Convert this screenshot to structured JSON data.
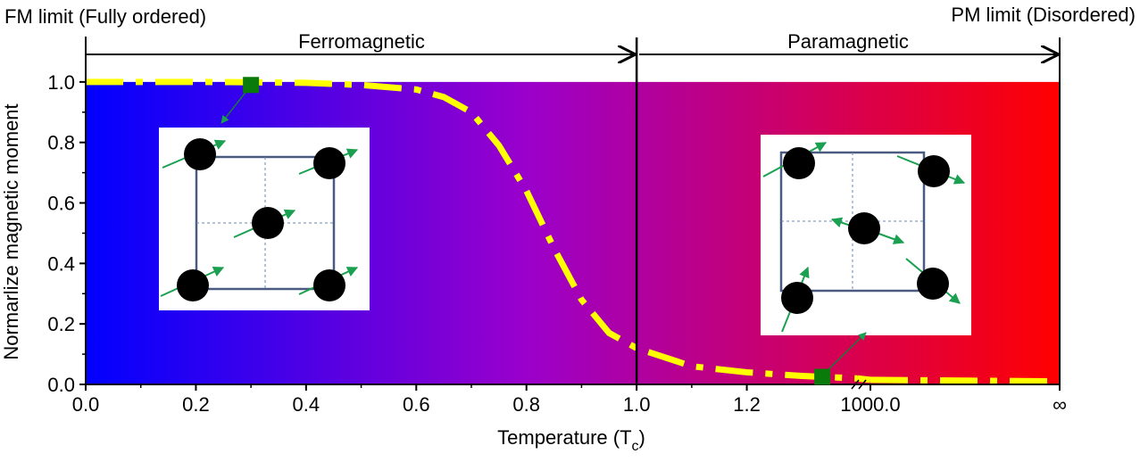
{
  "chart_data": {
    "type": "line",
    "annotations": {
      "fm_limit": "FM limit (Fully ordered)",
      "pm_limit": "PM limit (Disordered)",
      "ferro": "Ferromagnetic",
      "para": "Paramagnetic"
    },
    "ylabel": "Normarlize magnetic moment",
    "xlabel": {
      "main": "Temperature (T",
      "sub": "c",
      "end": ")"
    },
    "xlim": [
      0,
      1.4
    ],
    "xticks": [
      {
        "value": 0,
        "label": "0.0"
      },
      {
        "value": 0.2,
        "label": "0.2"
      },
      {
        "value": 0.4,
        "label": "0.4"
      },
      {
        "value": 0.6,
        "label": "0.6"
      },
      {
        "value": 0.8,
        "label": "0.8"
      },
      {
        "value": 1.0,
        "label": "1.0"
      },
      {
        "value": 1.2,
        "label": "1.2"
      }
    ],
    "x_break_labels": [
      "1000.0",
      "∞"
    ],
    "ylim": [
      0,
      1.15
    ],
    "yticks": [
      {
        "value": 0,
        "label": "0.0"
      },
      {
        "value": 0.2,
        "label": "0.2"
      },
      {
        "value": 0.4,
        "label": "0.4"
      },
      {
        "value": 0.6,
        "label": "0.6"
      },
      {
        "value": 0.8,
        "label": "0.8"
      },
      {
        "value": 1.0,
        "label": "1.0"
      }
    ],
    "tc_line": 1.0,
    "series": [
      {
        "color": "#ffff00",
        "x": [
          0,
          0.1,
          0.2,
          0.3,
          0.4,
          0.5,
          0.6,
          0.65,
          0.7,
          0.75,
          0.8,
          0.85,
          0.9,
          0.95,
          1.0,
          1.1,
          1.2,
          1.3,
          1.4
        ],
        "values": [
          1.0,
          1.0,
          1.0,
          0.999,
          0.997,
          0.99,
          0.975,
          0.95,
          0.9,
          0.79,
          0.64,
          0.45,
          0.28,
          0.17,
          0.12,
          0.06,
          0.04,
          0.028,
          0.02
        ],
        "tail": [
          0.015,
          0.01
        ]
      }
    ],
    "markers": {
      "color": "#0a7a0a",
      "x": [
        0.3,
        1.337
      ],
      "values": [
        0.99,
        0.025
      ]
    }
  }
}
